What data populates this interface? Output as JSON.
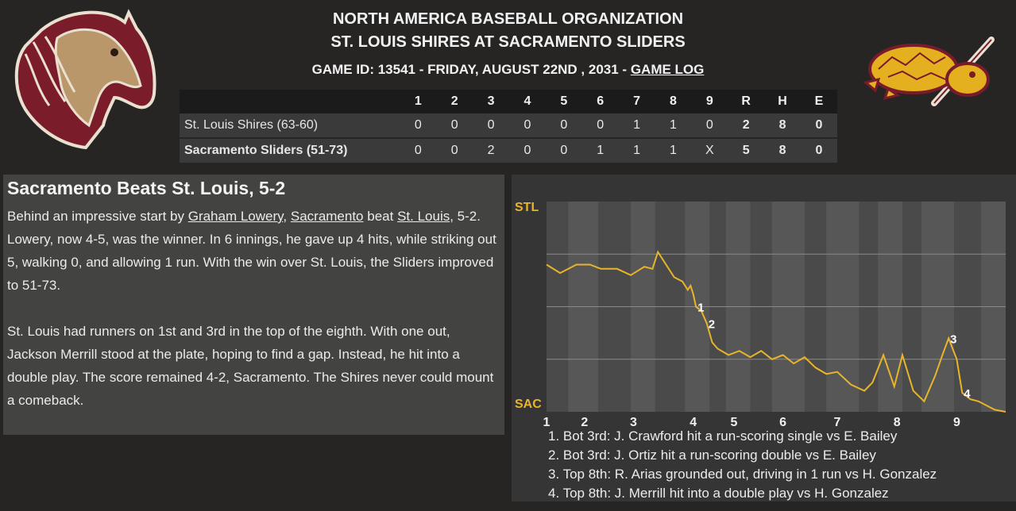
{
  "header": {
    "org": "NORTH AMERICA BASEBALL ORGANIZATION",
    "matchup": "ST. LOUIS SHIRES AT SACRAMENTO SLIDERS",
    "game_line": "GAME ID: 13541 - FRIDAY, AUGUST 22ND , 2031 - ",
    "game_log_link": "GAME LOG"
  },
  "colors": {
    "background": "#262524",
    "panel": "#434342",
    "graph_line": "#e8b52a",
    "away_primary": "#7a1b2a",
    "home_primary": "#e5b020"
  },
  "logos": {
    "away": "horse-head-logo",
    "home": "turtle-with-bat-logo"
  },
  "linescore": {
    "headers": [
      "1",
      "2",
      "3",
      "4",
      "5",
      "6",
      "7",
      "8",
      "9",
      "R",
      "H",
      "E"
    ],
    "rows": [
      {
        "team": "St. Louis Shires (63-60)",
        "innings": [
          "0",
          "0",
          "0",
          "0",
          "0",
          "0",
          "1",
          "1",
          "0"
        ],
        "r": "2",
        "h": "8",
        "e": "0"
      },
      {
        "team": "Sacramento Sliders (51-73)",
        "innings": [
          "0",
          "0",
          "2",
          "0",
          "0",
          "1",
          "1",
          "1",
          "X"
        ],
        "r": "5",
        "h": "8",
        "e": "0"
      }
    ]
  },
  "recap": {
    "headline": "Sacramento Beats St. Louis, 5-2",
    "p1_a": "Behind an impressive start by ",
    "p1_link1": "Graham Lowery",
    "p1_b": ", ",
    "p1_link2": "Sacramento",
    "p1_c": " beat ",
    "p1_link3": "St. Louis",
    "p1_d": ", 5-2. Lowery, now 4-5, was the winner. In 6 innings, he gave up 4 hits, while striking out 5, walking 0, and allowing 1 run. With the win over St. Louis, the Sliders improved to 51-73.",
    "p2": "St. Louis had runners on 1st and 3rd in the top of the eighth. With one out, Jackson Merrill stood at the plate, hoping to find a gap. Instead, he hit into a double play. The score remained 4-2, Sacramento. The Shires never could mount a comeback."
  },
  "chart_data": {
    "type": "line",
    "title": "",
    "y_top_label": "STL",
    "y_bottom_label": "SAC",
    "x_ticks": [
      "1",
      "2",
      "3",
      "4",
      "5",
      "6",
      "7",
      "8",
      "9"
    ],
    "ylim": [
      0,
      1
    ],
    "series": [
      {
        "values": [
          [
            1.0,
            0.7
          ],
          [
            1.25,
            0.66
          ],
          [
            1.55,
            0.7
          ],
          [
            1.8,
            0.7
          ],
          [
            2.0,
            0.68
          ],
          [
            2.3,
            0.68
          ],
          [
            2.55,
            0.65
          ],
          [
            2.8,
            0.69
          ],
          [
            2.95,
            0.68
          ],
          [
            3.05,
            0.76
          ],
          [
            3.2,
            0.7
          ],
          [
            3.35,
            0.64
          ],
          [
            3.5,
            0.62
          ],
          [
            3.6,
            0.58
          ],
          [
            3.65,
            0.6
          ],
          [
            3.7,
            0.56
          ],
          [
            3.75,
            0.5
          ],
          [
            3.85,
            0.48
          ],
          [
            3.95,
            0.42
          ],
          [
            4.05,
            0.33
          ],
          [
            4.15,
            0.3
          ],
          [
            4.35,
            0.27
          ],
          [
            4.55,
            0.29
          ],
          [
            4.75,
            0.26
          ],
          [
            4.95,
            0.29
          ],
          [
            5.15,
            0.25
          ],
          [
            5.35,
            0.27
          ],
          [
            5.55,
            0.23
          ],
          [
            5.75,
            0.26
          ],
          [
            5.95,
            0.21
          ],
          [
            6.15,
            0.18
          ],
          [
            6.35,
            0.19
          ],
          [
            6.6,
            0.13
          ],
          [
            6.85,
            0.1
          ],
          [
            7.0,
            0.14
          ],
          [
            7.2,
            0.27
          ],
          [
            7.4,
            0.12
          ],
          [
            7.55,
            0.27
          ],
          [
            7.75,
            0.1
          ],
          [
            7.95,
            0.05
          ],
          [
            8.15,
            0.17
          ],
          [
            8.3,
            0.28
          ],
          [
            8.4,
            0.35
          ],
          [
            8.55,
            0.25
          ],
          [
            8.65,
            0.09
          ],
          [
            8.8,
            0.06
          ],
          [
            8.95,
            0.05
          ],
          [
            9.1,
            0.03
          ],
          [
            9.25,
            0.01
          ],
          [
            9.45,
            0.0
          ]
        ]
      }
    ],
    "annotations": [
      {
        "label": "1",
        "x": 3.75,
        "y": 0.5
      },
      {
        "label": "2",
        "x": 3.95,
        "y": 0.42
      },
      {
        "label": "3",
        "x": 8.4,
        "y": 0.35
      },
      {
        "label": "4",
        "x": 8.65,
        "y": 0.09
      }
    ],
    "notes": [
      "1. Bot 3rd: J. Crawford hit a run-scoring single vs E. Bailey",
      "2. Bot 3rd: J. Ortiz hit a run-scoring double vs E. Bailey",
      "3. Top 8th: R. Arias grounded out, driving in 1 run vs H. Gonzalez",
      "4. Top 8th: J. Merrill hit into a double play vs H. Gonzalez"
    ]
  }
}
